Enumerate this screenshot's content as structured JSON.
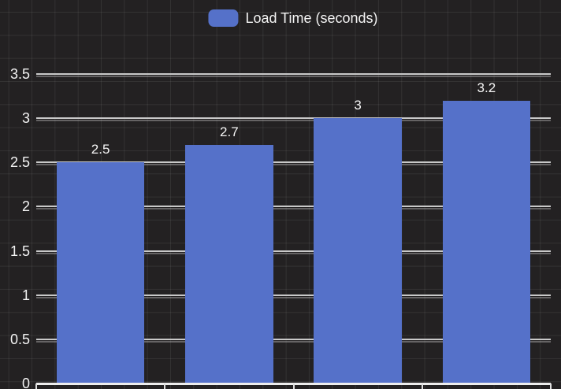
{
  "legend": {
    "label": "Load Time (seconds)"
  },
  "colors": {
    "bar": "#5571c9",
    "background": "#232122",
    "gridline": "#c9c9c9",
    "axis_line": "#ededed",
    "text": "#f3f3f3"
  },
  "chart_data": {
    "type": "bar",
    "title": "",
    "xlabel": "",
    "ylabel": "",
    "categories": [],
    "series": [
      {
        "name": "Load Time (seconds)",
        "values": [
          2.5,
          2.7,
          3,
          3.2
        ]
      }
    ],
    "data_labels": [
      "2.5",
      "2.7",
      "3",
      "3.2"
    ],
    "yticks": [
      0,
      0.5,
      1,
      1.5,
      2,
      2.5,
      3,
      3.5
    ],
    "ytick_labels": [
      "0",
      "0.5",
      "1",
      "1.5",
      "2",
      "2.5",
      "3",
      "3.5"
    ],
    "ylim": [
      0,
      3.9
    ],
    "grid": true,
    "legend_position": "top",
    "bar_color": "#5571c9",
    "note": "x-axis category labels cropped out of view"
  }
}
